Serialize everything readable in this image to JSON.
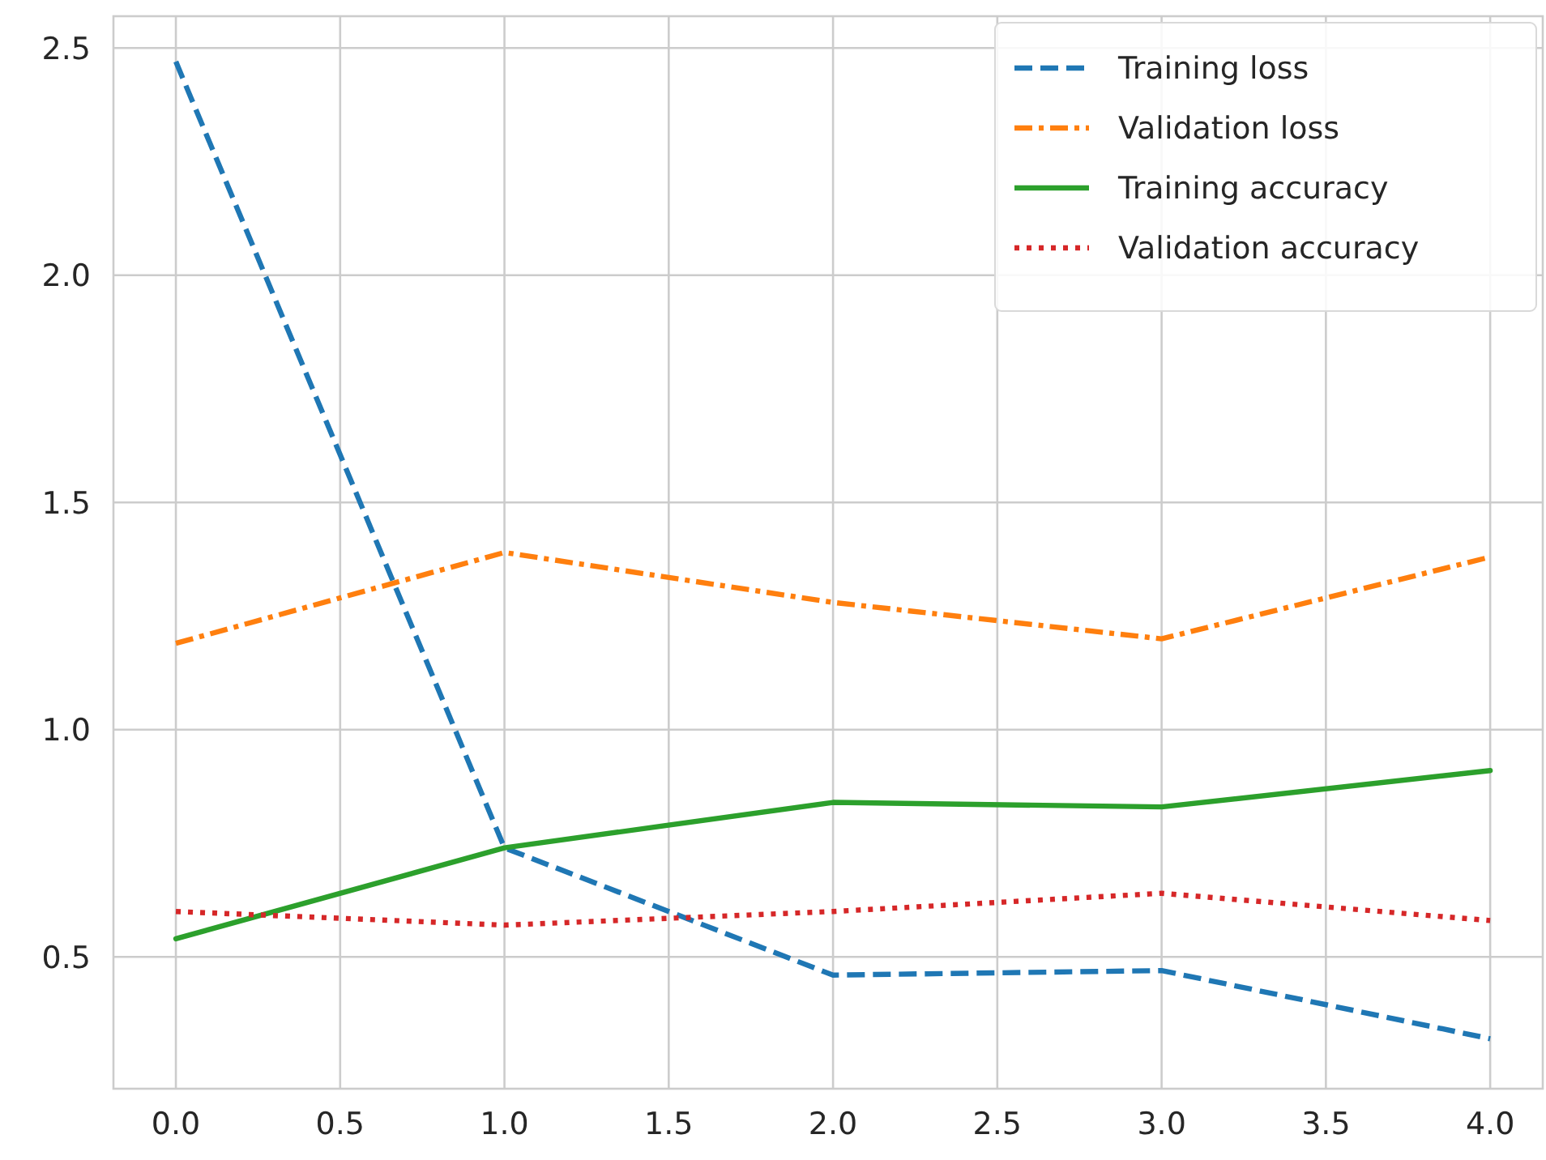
{
  "chart_data": {
    "type": "line",
    "x": [
      0,
      1,
      2,
      3,
      4
    ],
    "series": [
      {
        "name": "Training loss",
        "color": "#1f77b4",
        "line_style": "dashed",
        "values": [
          2.47,
          0.74,
          0.46,
          0.47,
          0.32
        ]
      },
      {
        "name": "Validation loss",
        "color": "#ff7f0e",
        "line_style": "dashdot",
        "values": [
          1.19,
          1.39,
          1.28,
          1.2,
          1.38
        ]
      },
      {
        "name": "Training accuracy",
        "color": "#2ca02c",
        "line_style": "solid",
        "values": [
          0.54,
          0.74,
          0.84,
          0.83,
          0.91
        ]
      },
      {
        "name": "Validation accuracy",
        "color": "#d62728",
        "line_style": "dotted",
        "values": [
          0.6,
          0.57,
          0.6,
          0.64,
          0.58
        ]
      }
    ],
    "xlim": [
      -0.19,
      4.16
    ],
    "ylim": [
      0.21,
      2.57
    ],
    "xticks": [
      {
        "value": 0,
        "label": "0.0"
      },
      {
        "value": 0.5,
        "label": "0.5"
      },
      {
        "value": 1,
        "label": "1.0"
      },
      {
        "value": 1.5,
        "label": "1.5"
      },
      {
        "value": 2,
        "label": "2.0"
      },
      {
        "value": 2.5,
        "label": "2.5"
      },
      {
        "value": 3,
        "label": "3.0"
      },
      {
        "value": 3.5,
        "label": "3.5"
      },
      {
        "value": 4,
        "label": "4.0"
      }
    ],
    "yticks": [
      {
        "value": 0.5,
        "label": "0.5"
      },
      {
        "value": 1,
        "label": "1.0"
      },
      {
        "value": 1.5,
        "label": "1.5"
      },
      {
        "value": 2,
        "label": "2.0"
      },
      {
        "value": 2.5,
        "label": "2.5"
      }
    ],
    "grid": true,
    "legend": "top right"
  }
}
